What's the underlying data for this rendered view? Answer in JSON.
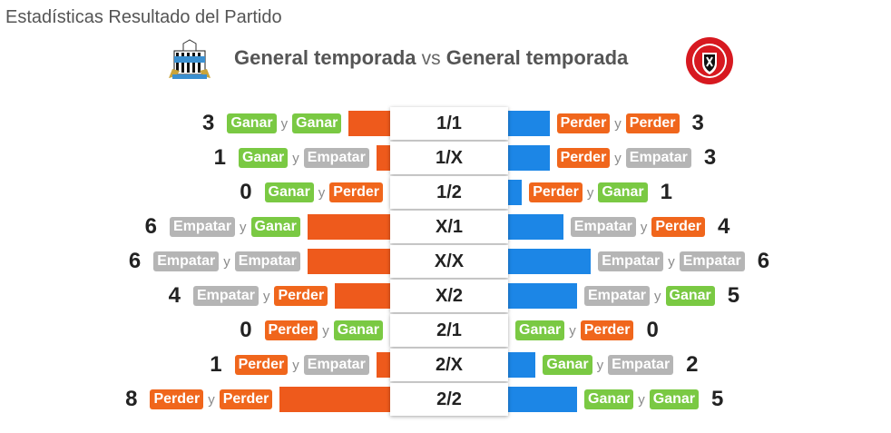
{
  "page_title": "Estadísticas Resultado del Partido",
  "header": {
    "left_label": "General temporada",
    "vs": "vs",
    "right_label": "General temporada"
  },
  "colors": {
    "left_bar": "#ee5a1c",
    "right_bar": "#1c86e6",
    "ganar": "#7ac943",
    "empatar": "#b5b5b5",
    "perder": "#f0661c"
  },
  "scale_max": 8,
  "conjunction": "y",
  "rows": [
    {
      "market": "1/1",
      "left": {
        "count": 3,
        "a": "Ganar",
        "b": "Ganar"
      },
      "right": {
        "count": 3,
        "a": "Perder",
        "b": "Perder"
      }
    },
    {
      "market": "1/X",
      "left": {
        "count": 1,
        "a": "Ganar",
        "b": "Empatar"
      },
      "right": {
        "count": 3,
        "a": "Perder",
        "b": "Empatar"
      }
    },
    {
      "market": "1/2",
      "left": {
        "count": 0,
        "a": "Ganar",
        "b": "Perder"
      },
      "right": {
        "count": 1,
        "a": "Perder",
        "b": "Ganar"
      }
    },
    {
      "market": "X/1",
      "left": {
        "count": 6,
        "a": "Empatar",
        "b": "Ganar"
      },
      "right": {
        "count": 4,
        "a": "Empatar",
        "b": "Perder"
      }
    },
    {
      "market": "X/X",
      "left": {
        "count": 6,
        "a": "Empatar",
        "b": "Empatar"
      },
      "right": {
        "count": 6,
        "a": "Empatar",
        "b": "Empatar"
      }
    },
    {
      "market": "X/2",
      "left": {
        "count": 4,
        "a": "Empatar",
        "b": "Perder"
      },
      "right": {
        "count": 5,
        "a": "Empatar",
        "b": "Ganar"
      }
    },
    {
      "market": "2/1",
      "left": {
        "count": 0,
        "a": "Perder",
        "b": "Ganar"
      },
      "right": {
        "count": 0,
        "a": "Ganar",
        "b": "Perder"
      }
    },
    {
      "market": "2/X",
      "left": {
        "count": 1,
        "a": "Perder",
        "b": "Empatar"
      },
      "right": {
        "count": 2,
        "a": "Ganar",
        "b": "Empatar"
      }
    },
    {
      "market": "2/2",
      "left": {
        "count": 8,
        "a": "Perder",
        "b": "Perder"
      },
      "right": {
        "count": 5,
        "a": "Ganar",
        "b": "Ganar"
      }
    }
  ]
}
